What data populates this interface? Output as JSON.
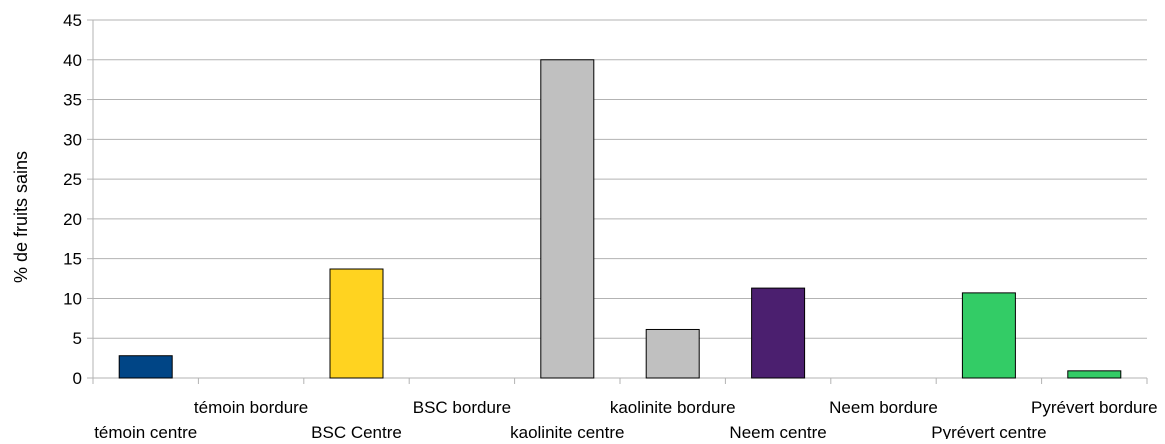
{
  "chart_data": {
    "type": "bar",
    "ylabel": "% de fruits sains",
    "xlabel": "",
    "ylim": [
      0,
      45
    ],
    "yticks": [
      0,
      5,
      10,
      15,
      20,
      25,
      30,
      35,
      40,
      45
    ],
    "grid": true,
    "legend": "none",
    "categories": [
      "témoin centre",
      "témoin bordure",
      "BSC Centre",
      "BSC bordure",
      "kaolinite centre",
      "kaolinite bordure",
      "Neem centre",
      "Neem bordure",
      "Pyrévert centre",
      "Pyrévert bordure"
    ],
    "values": [
      2.8,
      0,
      13.7,
      0,
      40.0,
      6.1,
      11.3,
      0,
      10.7,
      0.9
    ],
    "colors": [
      "#004586",
      "#004586",
      "#ffd320",
      "#ffd320",
      "#c0c0c0",
      "#c0c0c0",
      "#4b1f6f",
      "#4b1f6f",
      "#33cc66",
      "#33cc66"
    ]
  }
}
